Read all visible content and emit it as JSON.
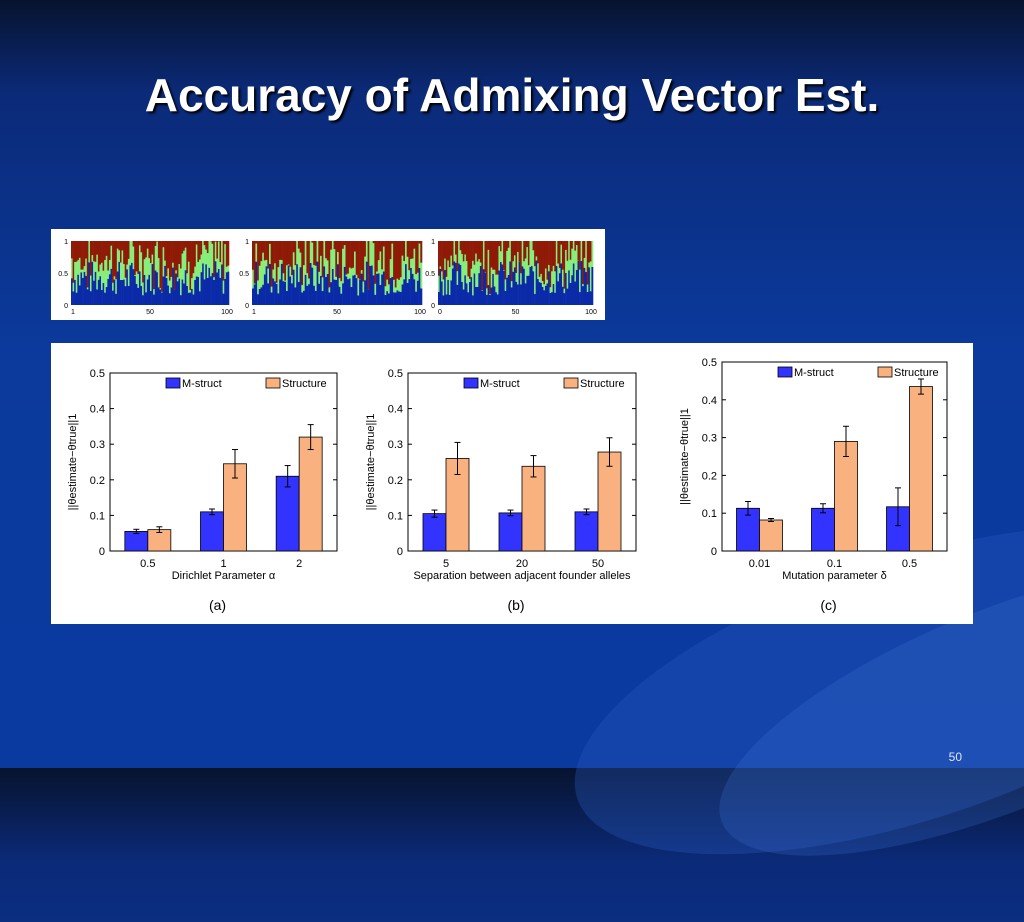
{
  "slide": {
    "title": "Accuracy of Admixing Vector Est.",
    "number": "50"
  },
  "colors": {
    "m_struct": "#3333ff",
    "structure": "#f9b27f",
    "admix_blue": "#0b2aa8",
    "admix_green": "#86ee7a",
    "admix_red": "#8f1a06"
  },
  "admixture_plots": [
    {
      "y_ticks": [
        "1",
        "0.5",
        "0"
      ],
      "x_ticks": [
        "1",
        "50",
        "100"
      ]
    },
    {
      "y_ticks": [
        "1",
        "0.5",
        "0"
      ],
      "x_ticks": [
        "1",
        "50",
        "100"
      ]
    },
    {
      "y_ticks": [
        "1",
        "0.5",
        "0"
      ],
      "x_ticks": [
        "0",
        "50",
        "100"
      ]
    }
  ],
  "chart_data": [
    {
      "type": "bar",
      "caption": "(a)",
      "xlabel": "Dirichlet Parameter α",
      "ylabel": "||θestimate−θtrue||1",
      "ylim": [
        0,
        0.5
      ],
      "yticks": [
        "0",
        "0.1",
        "0.2",
        "0.3",
        "0.4",
        "0.5"
      ],
      "categories": [
        "0.5",
        "1",
        "2"
      ],
      "legend": "top-right",
      "series": [
        {
          "name": "M-struct",
          "values": [
            0.055,
            0.11,
            0.21
          ],
          "errors": [
            0.006,
            0.008,
            0.03
          ]
        },
        {
          "name": "Structure",
          "values": [
            0.06,
            0.245,
            0.32
          ],
          "errors": [
            0.008,
            0.04,
            0.035
          ]
        }
      ]
    },
    {
      "type": "bar",
      "caption": "(b)",
      "xlabel": "Separation between adjacent founder alleles",
      "ylabel": "||θestimate−θtrue||1",
      "ylim": [
        0,
        0.5
      ],
      "yticks": [
        "0",
        "0.1",
        "0.2",
        "0.3",
        "0.4",
        "0.5"
      ],
      "categories": [
        "5",
        "20",
        "50"
      ],
      "legend": "top-right",
      "series": [
        {
          "name": "M-struct",
          "values": [
            0.105,
            0.107,
            0.11
          ],
          "errors": [
            0.01,
            0.008,
            0.008
          ]
        },
        {
          "name": "Structure",
          "values": [
            0.26,
            0.238,
            0.278
          ],
          "errors": [
            0.045,
            0.03,
            0.04
          ]
        }
      ]
    },
    {
      "type": "bar",
      "caption": "(c)",
      "xlabel": "Mutation parameter δ",
      "ylabel": "||θestimate−θtrue||1",
      "ylim": [
        0,
        0.5
      ],
      "yticks": [
        "0",
        "0.1",
        "0.2",
        "0.3",
        "0.4",
        "0.5"
      ],
      "categories": [
        "0.01",
        "0.1",
        "0.5"
      ],
      "legend": "top-right",
      "series": [
        {
          "name": "M-struct",
          "values": [
            0.113,
            0.113,
            0.117
          ],
          "errors": [
            0.018,
            0.012,
            0.05
          ]
        },
        {
          "name": "Structure",
          "values": [
            0.082,
            0.29,
            0.435
          ],
          "errors": [
            0.004,
            0.04,
            0.02
          ]
        }
      ]
    }
  ]
}
